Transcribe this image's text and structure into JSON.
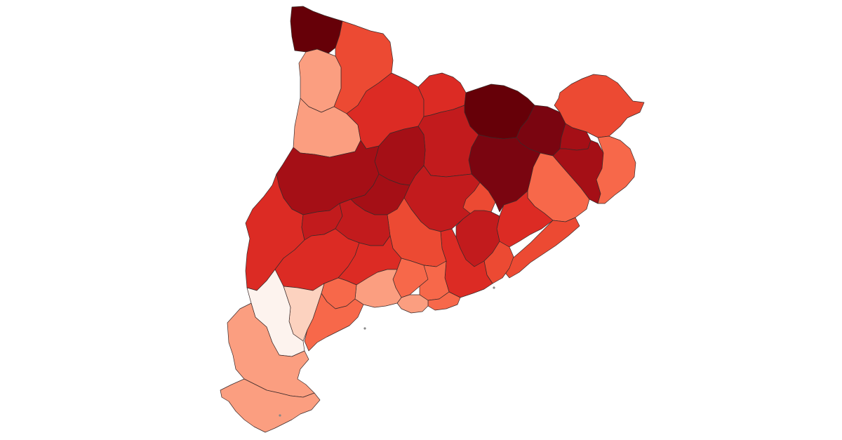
{
  "map": {
    "palette": {
      "c1": "#fdf3ee",
      "c2": "#fcd2bf",
      "c3": "#fb9e80",
      "c4": "#f7684a",
      "c5": "#ec4a33",
      "c6": "#dc2b24",
      "c7": "#c21b1d",
      "c8": "#a50f16",
      "c9": "#7a0510",
      "c10": "#660008"
    },
    "regions": [
      {
        "name": "val-daran",
        "level": "c10"
      },
      {
        "name": "pallars-sobira",
        "level": "c5"
      },
      {
        "name": "alta-ribagorca",
        "level": "c3"
      },
      {
        "name": "pallars-jussa",
        "level": "c3"
      },
      {
        "name": "alt-urgell",
        "level": "c6"
      },
      {
        "name": "cerdanya",
        "level": "c6"
      },
      {
        "name": "ripolles",
        "level": "c10"
      },
      {
        "name": "garrotxa",
        "level": "c9"
      },
      {
        "name": "alt-emporda",
        "level": "c5"
      },
      {
        "name": "pla-de-lestany",
        "level": "c8"
      },
      {
        "name": "baix-emporda",
        "level": "c4"
      },
      {
        "name": "girones",
        "level": "c8"
      },
      {
        "name": "osona",
        "level": "c9"
      },
      {
        "name": "bergueda",
        "level": "c7"
      },
      {
        "name": "solsones",
        "level": "c8"
      },
      {
        "name": "noguera",
        "level": "c8"
      },
      {
        "name": "segarra",
        "level": "c8"
      },
      {
        "name": "bages",
        "level": "c7"
      },
      {
        "name": "selva",
        "level": "c4"
      },
      {
        "name": "maresme",
        "level": "c5"
      },
      {
        "name": "valles-oriental",
        "level": "c6"
      },
      {
        "name": "valles-occidental",
        "level": "c7"
      },
      {
        "name": "moianes",
        "level": "c5"
      },
      {
        "name": "anoia",
        "level": "c5"
      },
      {
        "name": "segria",
        "level": "c6"
      },
      {
        "name": "pla-durgell",
        "level": "c7"
      },
      {
        "name": "urgell",
        "level": "c7"
      },
      {
        "name": "garrigues",
        "level": "c6"
      },
      {
        "name": "conca-de-barbera",
        "level": "c6"
      },
      {
        "name": "alt-camp",
        "level": "c4"
      },
      {
        "name": "alt-penedes",
        "level": "c4"
      },
      {
        "name": "baix-llobregat",
        "level": "c6"
      },
      {
        "name": "barcelones",
        "level": "c5"
      },
      {
        "name": "garraf",
        "level": "c4"
      },
      {
        "name": "baix-penedes",
        "level": "c3"
      },
      {
        "name": "tarragones",
        "level": "c3"
      },
      {
        "name": "priorat",
        "level": "c4"
      },
      {
        "name": "baix-camp",
        "level": "c4"
      },
      {
        "name": "ribera-debre",
        "level": "c2"
      },
      {
        "name": "terra-alta",
        "level": "c1"
      },
      {
        "name": "baix-ebre",
        "level": "c3"
      },
      {
        "name": "montsia",
        "level": "c3"
      }
    ]
  }
}
